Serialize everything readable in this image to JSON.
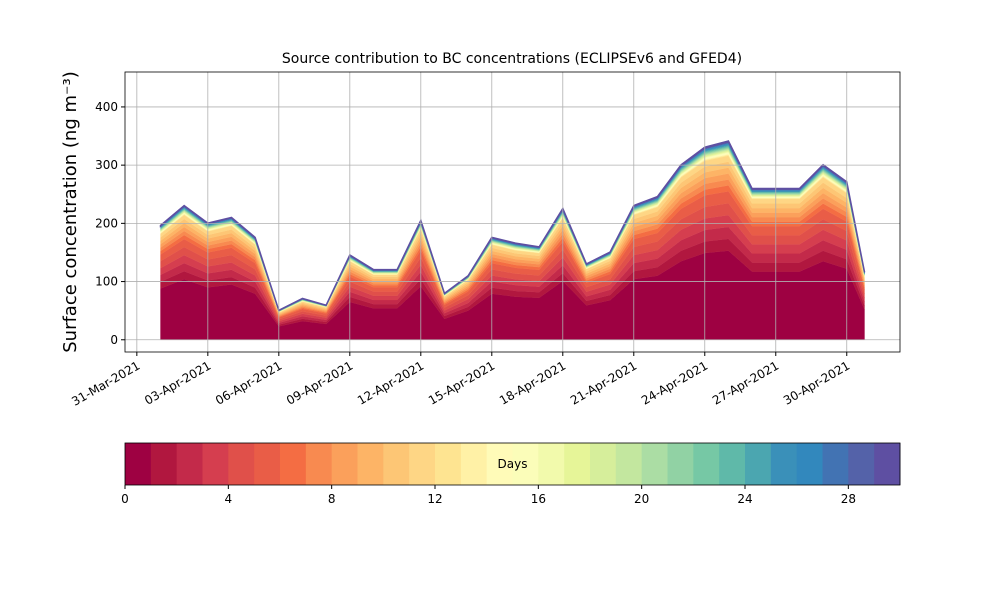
{
  "chart_data": {
    "type": "stacked_area",
    "title": "Source contribution to BC concentrations (ECLIPSEv6 and GFED4)",
    "ylabel": "Surface concentration (ng m⁻³)",
    "x": [
      "2021-04-01",
      "2021-04-02",
      "2021-04-03",
      "2021-04-04",
      "2021-04-05",
      "2021-04-06",
      "2021-04-07",
      "2021-04-08",
      "2021-04-09",
      "2021-04-10",
      "2021-04-11",
      "2021-04-12",
      "2021-04-13",
      "2021-04-14",
      "2021-04-15",
      "2021-04-16",
      "2021-04-17",
      "2021-04-18",
      "2021-04-19",
      "2021-04-20",
      "2021-04-21",
      "2021-04-22",
      "2021-04-23",
      "2021-04-24",
      "2021-04-25",
      "2021-04-26",
      "2021-04-27",
      "2021-04-28",
      "2021-04-29",
      "2021-04-30",
      "2021-04-30T18:00"
    ],
    "xlim": [
      "2021-03-30T12:00",
      "2021-05-02T06:00"
    ],
    "xticks": [
      {
        "value": "2021-03-31",
        "label": "31-Mar-2021"
      },
      {
        "value": "2021-04-03",
        "label": "03-Apr-2021"
      },
      {
        "value": "2021-04-06",
        "label": "06-Apr-2021"
      },
      {
        "value": "2021-04-09",
        "label": "09-Apr-2021"
      },
      {
        "value": "2021-04-12",
        "label": "12-Apr-2021"
      },
      {
        "value": "2021-04-15",
        "label": "15-Apr-2021"
      },
      {
        "value": "2021-04-18",
        "label": "18-Apr-2021"
      },
      {
        "value": "2021-04-21",
        "label": "21-Apr-2021"
      },
      {
        "value": "2021-04-24",
        "label": "24-Apr-2021"
      },
      {
        "value": "2021-04-27",
        "label": "27-Apr-2021"
      },
      {
        "value": "2021-04-30",
        "label": "30-Apr-2021"
      }
    ],
    "ylim": [
      -21,
      460
    ],
    "yticks": [
      0,
      100,
      200,
      300,
      400
    ],
    "grid": true,
    "series": [
      {
        "color": "#9e0142",
        "values": [
          88,
          104,
          90,
          95,
          79,
          23,
          32,
          27,
          65,
          54,
          54,
          92,
          36,
          50,
          79,
          74,
          72,
          101,
          59,
          68,
          104,
          110,
          135,
          149,
          153,
          117,
          117,
          117,
          135,
          122,
          52
        ]
      },
      {
        "color": "#b1173f",
        "values": [
          11.7,
          13.8,
          12,
          12.6,
          10.5,
          3,
          4.2,
          3.6,
          8.7,
          7.2,
          7.2,
          12.3,
          4.8,
          6.6,
          10.5,
          9.9,
          9.6,
          13.5,
          7.8,
          9,
          13.8,
          14.7,
          18,
          19.8,
          20.4,
          15.6,
          15.6,
          15.6,
          18,
          16.2,
          6.9
        ]
      },
      {
        "color": "#c32a4a",
        "values": [
          11.7,
          13.8,
          12,
          12.6,
          10.5,
          3,
          4.2,
          3.6,
          8.7,
          7.2,
          7.2,
          12.3,
          4.8,
          6.6,
          10.5,
          9.9,
          9.6,
          13.5,
          7.8,
          9,
          13.8,
          14.7,
          18,
          19.8,
          20.4,
          15.6,
          15.6,
          15.6,
          18,
          16.2,
          6.9
        ]
      },
      {
        "color": "#d53e4f",
        "values": [
          11.7,
          13.8,
          12,
          12.6,
          10.5,
          3,
          4.2,
          3.6,
          8.7,
          7.2,
          7.2,
          12.3,
          4.8,
          6.6,
          10.5,
          9.9,
          9.6,
          13.5,
          7.8,
          9,
          13.8,
          14.7,
          18,
          19.8,
          20.4,
          15.6,
          15.6,
          15.6,
          18,
          16.2,
          6.9
        ]
      },
      {
        "color": "#e0504a",
        "values": [
          11.7,
          13.8,
          12,
          12.6,
          10.5,
          3,
          4.2,
          3.6,
          8.7,
          7.2,
          7.2,
          12.3,
          4.8,
          6.6,
          10.5,
          9.9,
          9.6,
          13.5,
          7.8,
          9,
          13.8,
          14.7,
          18,
          19.8,
          20.4,
          15.6,
          15.6,
          15.6,
          18,
          16.2,
          6.9
        ]
      },
      {
        "color": "#e95d47",
        "values": [
          11.7,
          13.8,
          12,
          12.6,
          10.5,
          3,
          4.2,
          3.6,
          8.7,
          7.2,
          7.2,
          12.3,
          4.8,
          6.6,
          10.5,
          9.9,
          9.6,
          13.5,
          7.8,
          9,
          13.8,
          14.7,
          18,
          19.8,
          20.4,
          15.6,
          15.6,
          15.6,
          18,
          16.2,
          6.9
        ]
      },
      {
        "color": "#f46d43",
        "values": [
          5.9,
          6.9,
          6,
          6.3,
          5.3,
          1.5,
          2.1,
          1.8,
          4.4,
          3.6,
          3.6,
          6.2,
          2.4,
          3.3,
          5.3,
          5,
          4.8,
          6.8,
          3.9,
          4.5,
          6.9,
          7.4,
          9,
          9.9,
          10.2,
          7.8,
          7.8,
          7.8,
          9,
          8.1,
          3.5
        ]
      },
      {
        "color": "#f88a50",
        "values": [
          5.9,
          6.9,
          6,
          6.3,
          5.3,
          1.5,
          2.1,
          1.8,
          4.4,
          3.6,
          3.6,
          6.2,
          2.4,
          3.3,
          5.3,
          5,
          4.8,
          6.8,
          3.9,
          4.5,
          6.9,
          7.4,
          9,
          9.9,
          10.2,
          7.8,
          7.8,
          7.8,
          9,
          8.1,
          3.5
        ]
      },
      {
        "color": "#fba05b",
        "values": [
          5.9,
          6.9,
          6,
          6.3,
          5.3,
          1.5,
          2.1,
          1.8,
          4.4,
          3.6,
          3.6,
          6.2,
          2.4,
          3.3,
          5.3,
          5,
          4.8,
          6.8,
          3.9,
          4.5,
          6.9,
          7.4,
          9,
          9.9,
          10.2,
          7.8,
          7.8,
          7.8,
          9,
          8.1,
          3.5
        ]
      },
      {
        "color": "#fdb466",
        "values": [
          5.9,
          6.9,
          6,
          6.3,
          5.3,
          1.5,
          2.1,
          1.8,
          4.4,
          3.6,
          3.6,
          6.2,
          2.4,
          3.3,
          5.3,
          5,
          4.8,
          6.8,
          3.9,
          4.5,
          6.9,
          7.4,
          9,
          9.9,
          10.2,
          7.8,
          7.8,
          7.8,
          9,
          8.1,
          3.5
        ]
      },
      {
        "color": "#fdc675",
        "values": [
          5.9,
          6.9,
          6,
          6.3,
          5.3,
          1.5,
          2.1,
          1.8,
          4.4,
          3.6,
          3.6,
          6.2,
          2.4,
          3.3,
          5.3,
          5,
          4.8,
          6.8,
          3.9,
          4.5,
          6.9,
          7.4,
          9,
          9.9,
          10.2,
          7.8,
          7.8,
          7.8,
          9,
          8.1,
          3.5
        ]
      },
      {
        "color": "#fed685",
        "values": [
          5.9,
          6.9,
          6,
          6.3,
          5.3,
          1.5,
          2.1,
          1.8,
          4.4,
          3.6,
          3.6,
          6.2,
          2.4,
          3.3,
          5.3,
          5,
          4.8,
          6.8,
          3.9,
          4.5,
          6.9,
          7.4,
          9,
          9.9,
          10.2,
          7.8,
          7.8,
          7.8,
          9,
          8.1,
          3.5
        ]
      },
      {
        "color": "#fee491",
        "values": [
          0.8,
          0.9,
          0.8,
          0.8,
          0.7,
          0.2,
          0.3,
          0.2,
          0.6,
          0.5,
          0.5,
          0.8,
          0.3,
          0.4,
          0.7,
          0.7,
          0.6,
          0.9,
          0.5,
          0.6,
          0.9,
          1,
          1.2,
          1.3,
          1.4,
          1,
          1,
          1,
          1.2,
          1.1,
          0.5
        ]
      },
      {
        "color": "#fff1a6",
        "values": [
          0.8,
          0.9,
          0.8,
          0.8,
          0.7,
          0.2,
          0.3,
          0.2,
          0.6,
          0.5,
          0.5,
          0.8,
          0.3,
          0.4,
          0.7,
          0.7,
          0.6,
          0.9,
          0.5,
          0.6,
          0.9,
          1,
          1.2,
          1.3,
          1.4,
          1,
          1,
          1,
          1.2,
          1.1,
          0.5
        ]
      },
      {
        "color": "#fffbb8",
        "values": [
          0.8,
          0.9,
          0.8,
          0.8,
          0.7,
          0.2,
          0.3,
          0.2,
          0.6,
          0.5,
          0.5,
          0.8,
          0.3,
          0.4,
          0.7,
          0.7,
          0.6,
          0.9,
          0.5,
          0.6,
          0.9,
          1,
          1.2,
          1.3,
          1.4,
          1,
          1,
          1,
          1.2,
          1.1,
          0.5
        ]
      },
      {
        "color": "#fbfdb9",
        "values": [
          0.8,
          0.9,
          0.8,
          0.8,
          0.7,
          0.2,
          0.3,
          0.2,
          0.6,
          0.5,
          0.5,
          0.8,
          0.3,
          0.4,
          0.7,
          0.7,
          0.6,
          0.9,
          0.5,
          0.6,
          0.9,
          1,
          1.2,
          1.3,
          1.4,
          1,
          1,
          1,
          1.2,
          1.1,
          0.5
        ]
      },
      {
        "color": "#f2faac",
        "values": [
          0.8,
          0.9,
          0.8,
          0.8,
          0.7,
          0.2,
          0.3,
          0.2,
          0.6,
          0.5,
          0.5,
          0.8,
          0.3,
          0.4,
          0.7,
          0.7,
          0.6,
          0.9,
          0.5,
          0.6,
          0.9,
          1,
          1.2,
          1.3,
          1.4,
          1,
          1,
          1,
          1.2,
          1.1,
          0.5
        ]
      },
      {
        "color": "#e6f598",
        "values": [
          0.8,
          0.9,
          0.8,
          0.8,
          0.7,
          0.2,
          0.3,
          0.2,
          0.6,
          0.5,
          0.5,
          0.8,
          0.3,
          0.4,
          0.7,
          0.7,
          0.6,
          0.9,
          0.5,
          0.6,
          0.9,
          1,
          1.2,
          1.3,
          1.4,
          1,
          1,
          1,
          1.2,
          1.1,
          0.5
        ]
      },
      {
        "color": "#d6ee9b",
        "values": [
          0.8,
          0.9,
          0.8,
          0.8,
          0.7,
          0.2,
          0.3,
          0.2,
          0.6,
          0.5,
          0.5,
          0.8,
          0.3,
          0.4,
          0.7,
          0.7,
          0.6,
          0.9,
          0.5,
          0.6,
          0.9,
          1,
          1.2,
          1.3,
          1.4,
          1,
          1,
          1,
          1.2,
          1.1,
          0.5
        ]
      },
      {
        "color": "#c3e79f",
        "values": [
          0.8,
          0.9,
          0.8,
          0.8,
          0.7,
          0.2,
          0.3,
          0.2,
          0.6,
          0.5,
          0.5,
          0.8,
          0.3,
          0.4,
          0.7,
          0.7,
          0.6,
          0.9,
          0.5,
          0.6,
          0.9,
          1,
          1.2,
          1.3,
          1.4,
          1,
          1,
          1,
          1.2,
          1.1,
          0.5
        ]
      },
      {
        "color": "#abdda4",
        "values": [
          0.8,
          0.9,
          0.8,
          0.8,
          0.7,
          0.2,
          0.3,
          0.2,
          0.6,
          0.5,
          0.5,
          0.8,
          0.3,
          0.4,
          0.7,
          0.7,
          0.6,
          0.9,
          0.5,
          0.6,
          0.9,
          1,
          1.2,
          1.3,
          1.4,
          1,
          1,
          1,
          1.2,
          1.1,
          0.5
        ]
      },
      {
        "color": "#91d2a4",
        "values": [
          0.8,
          0.9,
          0.8,
          0.8,
          0.7,
          0.2,
          0.3,
          0.2,
          0.6,
          0.5,
          0.5,
          0.8,
          0.3,
          0.4,
          0.7,
          0.7,
          0.6,
          0.9,
          0.5,
          0.6,
          0.9,
          1,
          1.2,
          1.3,
          1.4,
          1,
          1,
          1,
          1.2,
          1.1,
          0.5
        ]
      },
      {
        "color": "#76c8a5",
        "values": [
          0.8,
          0.9,
          0.8,
          0.8,
          0.7,
          0.2,
          0.3,
          0.2,
          0.6,
          0.5,
          0.5,
          0.8,
          0.3,
          0.4,
          0.7,
          0.7,
          0.6,
          0.9,
          0.5,
          0.6,
          0.9,
          1,
          1.2,
          1.3,
          1.4,
          1,
          1,
          1,
          1.2,
          1.1,
          0.5
        ]
      },
      {
        "color": "#5fb9a9",
        "values": [
          0.8,
          0.9,
          0.8,
          0.8,
          0.7,
          0.2,
          0.3,
          0.2,
          0.6,
          0.5,
          0.5,
          0.8,
          0.3,
          0.4,
          0.7,
          0.7,
          0.6,
          0.9,
          0.5,
          0.6,
          0.9,
          1,
          1.2,
          1.3,
          1.4,
          1,
          1,
          1,
          1.2,
          1.1,
          0.5
        ]
      },
      {
        "color": "#4ba6b0",
        "values": [
          0.8,
          0.9,
          0.8,
          0.8,
          0.7,
          0.2,
          0.3,
          0.2,
          0.6,
          0.5,
          0.5,
          0.8,
          0.3,
          0.4,
          0.7,
          0.7,
          0.6,
          0.9,
          0.5,
          0.6,
          0.9,
          1,
          1.2,
          1.3,
          1.4,
          1,
          1,
          1,
          1.2,
          1.1,
          0.5
        ]
      },
      {
        "color": "#3a90b9",
        "values": [
          0.8,
          0.9,
          0.8,
          0.8,
          0.7,
          0.2,
          0.3,
          0.2,
          0.6,
          0.5,
          0.5,
          0.8,
          0.3,
          0.4,
          0.7,
          0.7,
          0.6,
          0.9,
          0.5,
          0.6,
          0.9,
          1,
          1.2,
          1.3,
          1.4,
          1,
          1,
          1,
          1.2,
          1.1,
          0.5
        ]
      },
      {
        "color": "#3288bd",
        "values": [
          0.8,
          0.9,
          0.8,
          0.8,
          0.7,
          0.2,
          0.3,
          0.2,
          0.6,
          0.5,
          0.5,
          0.8,
          0.3,
          0.4,
          0.7,
          0.7,
          0.6,
          0.9,
          0.5,
          0.6,
          0.9,
          1,
          1.2,
          1.3,
          1.4,
          1,
          1,
          1,
          1.2,
          1.1,
          0.5
        ]
      },
      {
        "color": "#4273b3",
        "values": [
          0.8,
          0.9,
          0.8,
          0.8,
          0.7,
          0.2,
          0.3,
          0.2,
          0.6,
          0.5,
          0.5,
          0.8,
          0.3,
          0.4,
          0.7,
          0.7,
          0.6,
          0.9,
          0.5,
          0.6,
          0.9,
          1,
          1.2,
          1.3,
          1.4,
          1,
          1,
          1,
          1.2,
          1.1,
          0.5
        ]
      },
      {
        "color": "#5462a9",
        "values": [
          0.8,
          0.9,
          0.8,
          0.8,
          0.7,
          0.2,
          0.3,
          0.2,
          0.6,
          0.5,
          0.5,
          0.8,
          0.3,
          0.4,
          0.7,
          0.7,
          0.6,
          0.9,
          0.5,
          0.6,
          0.9,
          1,
          1.2,
          1.3,
          1.4,
          1,
          1,
          1,
          1.2,
          1.1,
          0.5
        ]
      },
      {
        "color": "#5e4fa2",
        "values": [
          0.8,
          0.9,
          0.8,
          0.8,
          0.7,
          0.2,
          0.3,
          0.2,
          0.6,
          0.5,
          0.5,
          0.8,
          0.3,
          0.4,
          0.7,
          0.7,
          0.6,
          0.9,
          0.5,
          0.6,
          0.9,
          1,
          1.2,
          1.3,
          1.4,
          1,
          1,
          1,
          1.2,
          1.1,
          0.5
        ]
      }
    ],
    "colorbar": {
      "label": "Days",
      "lim": [
        0,
        30
      ],
      "ticks": [
        0,
        4,
        8,
        12,
        16,
        20,
        24,
        28
      ]
    }
  }
}
